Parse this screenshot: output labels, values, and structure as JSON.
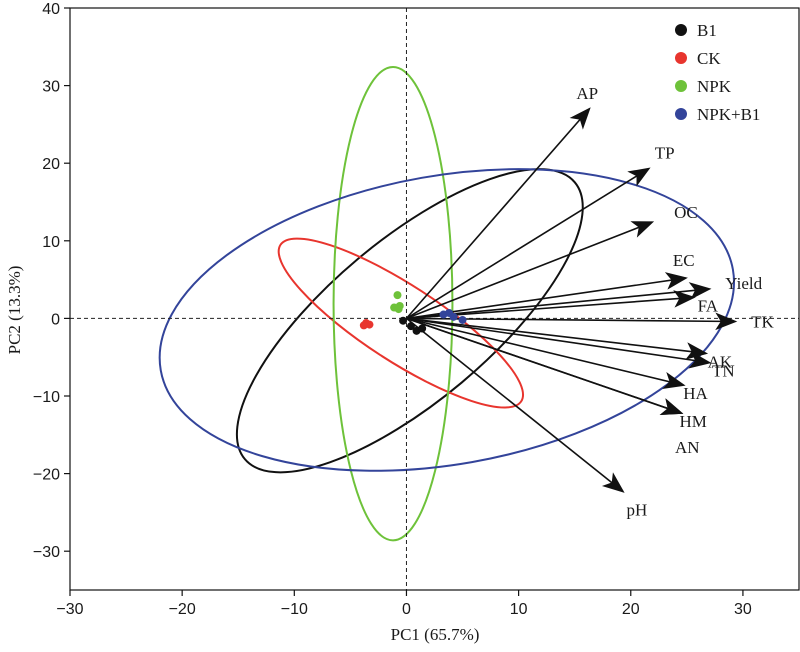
{
  "chart_data": {
    "type": "scatter",
    "subtype": "pca-biplot",
    "xlabel": "PC1 (65.7%)",
    "ylabel": "PC2 (13.3%)",
    "xlim": [
      -30,
      35
    ],
    "ylim": [
      -35,
      40
    ],
    "x_ticks": [
      -30,
      -20,
      -10,
      0,
      10,
      20,
      30
    ],
    "y_ticks": [
      -30,
      -20,
      -10,
      0,
      10,
      20,
      30,
      40
    ],
    "reference_lines": {
      "x": 0,
      "y": 0,
      "style": "dashed"
    },
    "legend": {
      "placement": "top-right"
    },
    "series": [
      {
        "name": "B1",
        "color": "#111111",
        "points": [
          [
            -0.3,
            -0.3
          ],
          [
            0.4,
            -1.0
          ],
          [
            0.9,
            -1.6
          ],
          [
            1.4,
            -1.3
          ]
        ],
        "ellipse": {
          "cx": 0.3,
          "cy": -0.3,
          "rx": 19.2,
          "ry": 10.4,
          "angle_deg": -40
        }
      },
      {
        "name": "CK",
        "color": "#e8352e",
        "points": [
          [
            -3.6,
            -0.6
          ],
          [
            -3.3,
            -0.8
          ],
          [
            -3.8,
            -0.9
          ]
        ],
        "ellipse": {
          "cx": -0.5,
          "cy": -0.6,
          "rx": 12.8,
          "ry": 4.9,
          "angle_deg": 33
        }
      },
      {
        "name": "NPK",
        "color": "#6ec23a",
        "points": [
          [
            -0.8,
            3.0
          ],
          [
            -0.6,
            1.6
          ],
          [
            -1.1,
            1.4
          ],
          [
            -0.7,
            1.2
          ]
        ],
        "ellipse": {
          "cx": -1.2,
          "cy": 1.9,
          "rx": 5.3,
          "ry": 30.5,
          "angle_deg": 0
        }
      },
      {
        "name": "NPK+B1",
        "color": "#33449a",
        "points": [
          [
            3.3,
            0.5
          ],
          [
            3.8,
            0.7
          ],
          [
            4.2,
            0.2
          ],
          [
            5.0,
            -0.2
          ]
        ],
        "ellipse": {
          "cx": 3.6,
          "cy": -0.2,
          "rx": 25.9,
          "ry": 18.6,
          "angle_deg": -10
        }
      }
    ],
    "loadings": [
      {
        "name": "AP",
        "x": 16.3,
        "y": 27.0
      },
      {
        "name": "TP",
        "x": 21.6,
        "y": 19.3
      },
      {
        "name": "OC",
        "x": 21.9,
        "y": 12.4
      },
      {
        "name": "EC",
        "x": 24.9,
        "y": 5.2
      },
      {
        "name": "Yield",
        "x": 27.0,
        "y": 3.8
      },
      {
        "name": "FA",
        "x": 25.6,
        "y": 2.7
      },
      {
        "name": "TK",
        "x": 29.3,
        "y": -0.4
      },
      {
        "name": "AK",
        "x": 26.7,
        "y": -4.5
      },
      {
        "name": "TN",
        "x": 27.0,
        "y": -5.7
      },
      {
        "name": "HA",
        "x": 24.7,
        "y": -8.6
      },
      {
        "name": "HM",
        "x": 24.5,
        "y": -12.2
      },
      {
        "name": "AN",
        "x": 24.5,
        "y": -12.2
      },
      {
        "name": "pH",
        "x": 19.3,
        "y": -22.3
      }
    ]
  }
}
